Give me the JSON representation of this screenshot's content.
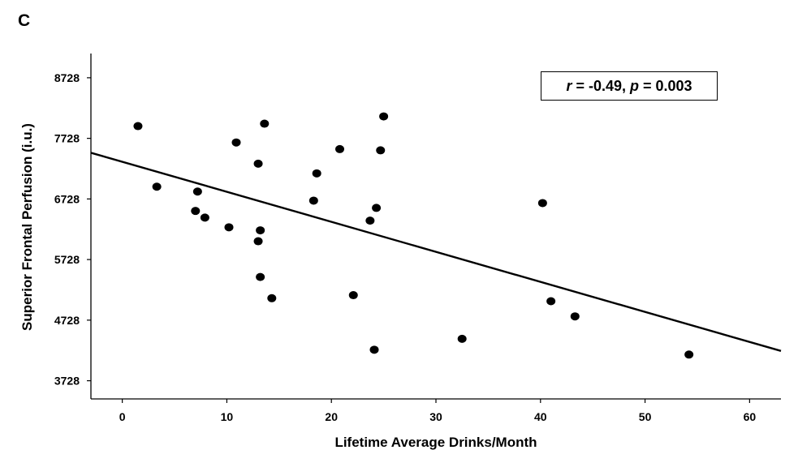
{
  "panel_label": "C",
  "annotation": {
    "r_symbol": "r",
    "r_text": " = -0.49, ",
    "p_symbol": "p",
    "p_text": " = 0.003"
  },
  "chart_data": {
    "type": "scatter",
    "xlabel": "Lifetime Average Drinks/Month",
    "ylabel": "Superior Frontal Perfusion (i.u.)",
    "xlim": [
      -3,
      63
    ],
    "ylim": [
      3428,
      9128
    ],
    "xticks": [
      0,
      10,
      20,
      30,
      40,
      50,
      60
    ],
    "yticks": [
      3728,
      4728,
      5728,
      6728,
      7728,
      8728
    ],
    "grid": false,
    "points": [
      {
        "x": 1.5,
        "y": 7930
      },
      {
        "x": 3.3,
        "y": 6930
      },
      {
        "x": 7.0,
        "y": 6530
      },
      {
        "x": 7.2,
        "y": 6850
      },
      {
        "x": 7.9,
        "y": 6420
      },
      {
        "x": 10.2,
        "y": 6260
      },
      {
        "x": 10.9,
        "y": 7660
      },
      {
        "x": 13.0,
        "y": 7310
      },
      {
        "x": 13.0,
        "y": 6030
      },
      {
        "x": 13.2,
        "y": 6210
      },
      {
        "x": 13.2,
        "y": 5440
      },
      {
        "x": 13.6,
        "y": 7970
      },
      {
        "x": 14.3,
        "y": 5090
      },
      {
        "x": 18.3,
        "y": 6700
      },
      {
        "x": 18.6,
        "y": 7150
      },
      {
        "x": 20.8,
        "y": 7550
      },
      {
        "x": 22.1,
        "y": 5140
      },
      {
        "x": 23.7,
        "y": 6370
      },
      {
        "x": 24.1,
        "y": 4240
      },
      {
        "x": 24.3,
        "y": 6580
      },
      {
        "x": 24.7,
        "y": 7530
      },
      {
        "x": 25.0,
        "y": 8090
      },
      {
        "x": 32.5,
        "y": 4420
      },
      {
        "x": 40.2,
        "y": 6660
      },
      {
        "x": 41.0,
        "y": 5040
      },
      {
        "x": 43.3,
        "y": 4790
      },
      {
        "x": 54.2,
        "y": 4160
      }
    ],
    "regression_line": {
      "x": [
        -3,
        63
      ],
      "y": [
        7490,
        4220
      ]
    }
  }
}
